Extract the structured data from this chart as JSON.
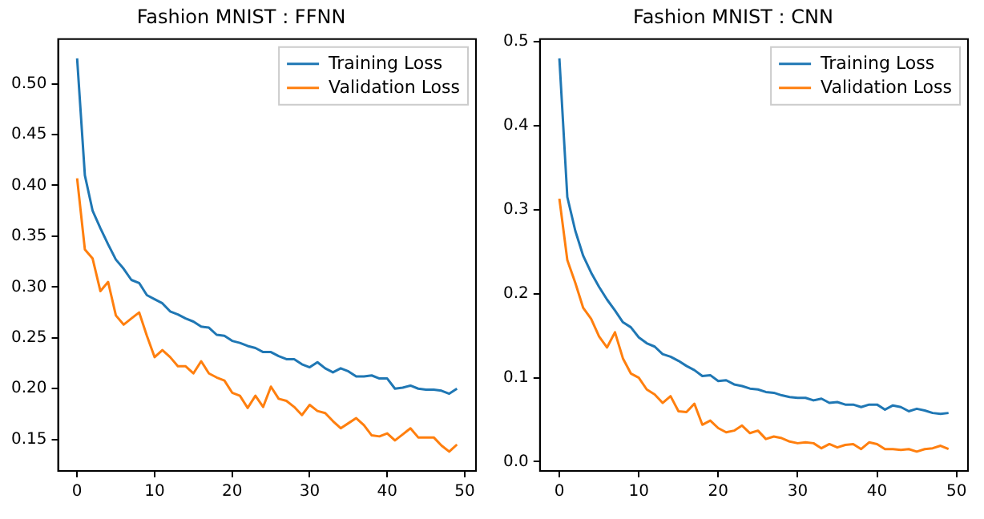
{
  "chart_data": [
    {
      "type": "line",
      "title": "Fashion MNIST : FFNN",
      "x": [
        0,
        1,
        2,
        3,
        4,
        5,
        6,
        7,
        8,
        9,
        10,
        11,
        12,
        13,
        14,
        15,
        16,
        17,
        18,
        19,
        20,
        21,
        22,
        23,
        24,
        25,
        26,
        27,
        28,
        29,
        30,
        31,
        32,
        33,
        34,
        35,
        36,
        37,
        38,
        39,
        40,
        41,
        42,
        43,
        44,
        45,
        46,
        47,
        48,
        49
      ],
      "series": [
        {
          "name": "Training Loss",
          "color": "#1f77b4",
          "values": [
            0.525,
            0.41,
            0.375,
            0.358,
            0.342,
            0.327,
            0.318,
            0.307,
            0.304,
            0.292,
            0.288,
            0.284,
            0.276,
            0.273,
            0.269,
            0.266,
            0.261,
            0.26,
            0.253,
            0.252,
            0.247,
            0.245,
            0.242,
            0.24,
            0.236,
            0.236,
            0.232,
            0.229,
            0.229,
            0.224,
            0.221,
            0.226,
            0.22,
            0.216,
            0.22,
            0.217,
            0.212,
            0.212,
            0.213,
            0.21,
            0.21,
            0.2,
            0.201,
            0.203,
            0.2,
            0.199,
            0.199,
            0.198,
            0.195,
            0.2
          ]
        },
        {
          "name": "Validation Loss",
          "color": "#ff7f0e",
          "values": [
            0.407,
            0.337,
            0.328,
            0.296,
            0.305,
            0.272,
            0.263,
            0.269,
            0.275,
            0.252,
            0.231,
            0.238,
            0.231,
            0.222,
            0.222,
            0.215,
            0.227,
            0.215,
            0.211,
            0.208,
            0.196,
            0.193,
            0.181,
            0.193,
            0.182,
            0.202,
            0.19,
            0.188,
            0.182,
            0.174,
            0.184,
            0.178,
            0.176,
            0.168,
            0.161,
            0.166,
            0.171,
            0.164,
            0.154,
            0.153,
            0.156,
            0.149,
            0.155,
            0.161,
            0.152,
            0.152,
            0.152,
            0.144,
            0.138,
            0.145
          ]
        }
      ],
      "xlim": [
        -2.45,
        51.45
      ],
      "xticks": [
        0,
        10,
        20,
        30,
        40,
        50
      ],
      "ylim": [
        0.119,
        0.544
      ],
      "yticks": [
        0.15,
        {
          "value": 0.2,
          "label": "0.20"
        },
        0.25,
        {
          "value": 0.3,
          "label": "0.30"
        },
        0.35,
        {
          "value": 0.4,
          "label": "0.40"
        },
        0.45,
        {
          "value": 0.5,
          "label": "0.50"
        }
      ],
      "legend": "top right",
      "grid": false
    },
    {
      "type": "line",
      "title": "Fashion MNIST : CNN",
      "x": [
        0,
        1,
        2,
        3,
        4,
        5,
        6,
        7,
        8,
        9,
        10,
        11,
        12,
        13,
        14,
        15,
        16,
        17,
        18,
        19,
        20,
        21,
        22,
        23,
        24,
        25,
        26,
        27,
        28,
        29,
        30,
        31,
        32,
        33,
        34,
        35,
        36,
        37,
        38,
        39,
        40,
        41,
        42,
        43,
        44,
        45,
        46,
        47,
        48,
        49
      ],
      "series": [
        {
          "name": "Training Loss",
          "color": "#1f77b4",
          "values": [
            0.48,
            0.315,
            0.275,
            0.245,
            0.225,
            0.208,
            0.193,
            0.18,
            0.166,
            0.16,
            0.148,
            0.141,
            0.137,
            0.128,
            0.125,
            0.12,
            0.114,
            0.109,
            0.102,
            0.103,
            0.096,
            0.097,
            0.092,
            0.09,
            0.087,
            0.086,
            0.083,
            0.082,
            0.079,
            0.077,
            0.076,
            0.076,
            0.073,
            0.075,
            0.07,
            0.071,
            0.068,
            0.068,
            0.065,
            0.068,
            0.068,
            0.062,
            0.067,
            0.065,
            0.06,
            0.063,
            0.061,
            0.058,
            0.057,
            0.058
          ]
        },
        {
          "name": "Validation Loss",
          "color": "#ff7f0e",
          "values": [
            0.313,
            0.24,
            0.213,
            0.183,
            0.17,
            0.149,
            0.136,
            0.154,
            0.123,
            0.105,
            0.1,
            0.086,
            0.08,
            0.07,
            0.078,
            0.06,
            0.059,
            0.069,
            0.044,
            0.049,
            0.04,
            0.035,
            0.037,
            0.043,
            0.034,
            0.037,
            0.027,
            0.03,
            0.028,
            0.024,
            0.022,
            0.023,
            0.022,
            0.016,
            0.021,
            0.017,
            0.02,
            0.021,
            0.015,
            0.023,
            0.021,
            0.015,
            0.015,
            0.014,
            0.015,
            0.012,
            0.015,
            0.016,
            0.019,
            0.015
          ]
        }
      ],
      "xlim": [
        -2.45,
        51.45
      ],
      "xticks": [
        0,
        10,
        20,
        30,
        40,
        50
      ],
      "ylim": [
        -0.011,
        0.503
      ],
      "yticks": [
        {
          "value": 0,
          "label": "0.0"
        },
        0.1,
        0.2,
        0.3,
        0.4,
        0.5
      ],
      "legend": "top right",
      "grid": false
    }
  ]
}
